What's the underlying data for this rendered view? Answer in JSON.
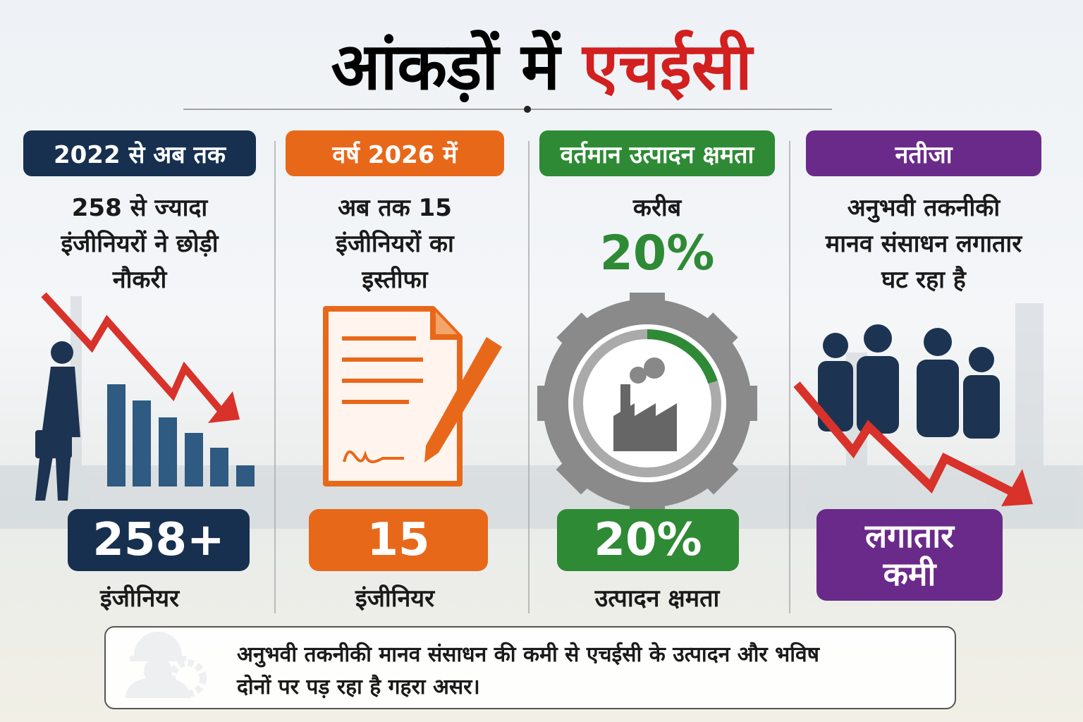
{
  "title": {
    "part1": "आंकड़ों में",
    "part2": "एचईसी"
  },
  "panels": [
    {
      "header": "2022 से अब तक",
      "description": [
        "258 से ज्यादा",
        "इंजीनियरों ने छोड़ी",
        "नौकरी"
      ],
      "stat": [
        "258+"
      ],
      "caption": "इंजीनियर"
    },
    {
      "header": "वर्ष 2026 में",
      "description": [
        "अब तक 15",
        "इंजीनियरों का",
        "इस्तीफा"
      ],
      "stat": [
        "15"
      ],
      "caption": "इंजीनियर"
    },
    {
      "header": "वर्तमान उत्पादन क्षमता",
      "description": [
        "करीब"
      ],
      "highlight": "20%",
      "stat": [
        "20%"
      ],
      "caption": "उत्पादन क्षमता"
    },
    {
      "header": "नतीजा",
      "description": [
        "अनुभवी तकनीकी",
        "मानव संसाधन लगातार",
        "घट रहा है"
      ],
      "stat": [
        "लगातार",
        "कमी"
      ]
    }
  ],
  "footer": {
    "lines": [
      "अनुभवी तकनीकी मानव संसाधन की कमी से एचईसी के उत्पादन और भविष",
      "दोनों पर पड़ रहा है गहरा असर।"
    ]
  }
}
